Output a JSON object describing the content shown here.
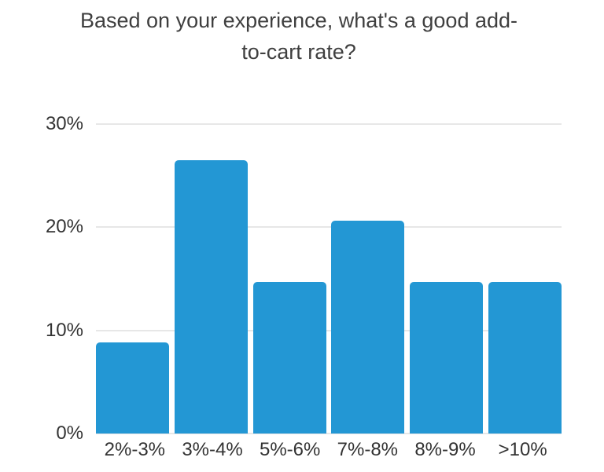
{
  "chart_data": {
    "type": "bar",
    "title": "Based on your experience, what's a good add-to-cart rate?",
    "categories": [
      "2%-3%",
      "3%-4%",
      "5%-6%",
      "7%-8%",
      "8%-9%",
      ">10%"
    ],
    "values": [
      8.8,
      26.5,
      14.7,
      20.6,
      14.7,
      14.7
    ],
    "xlabel": "",
    "ylabel": "",
    "ylim": [
      0,
      30
    ],
    "y_ticks": [
      {
        "value": 0,
        "label": "0%"
      },
      {
        "value": 10,
        "label": "10%"
      },
      {
        "value": 20,
        "label": "20%"
      },
      {
        "value": 30,
        "label": "30%"
      }
    ],
    "grid": "horizontal",
    "legend_position": "none",
    "colors": {
      "bar": "#2397d4",
      "gridline": "#e7e7e7",
      "title_text": "#3f3f3f",
      "axis_text": "#333333",
      "background": "#ffffff"
    }
  }
}
